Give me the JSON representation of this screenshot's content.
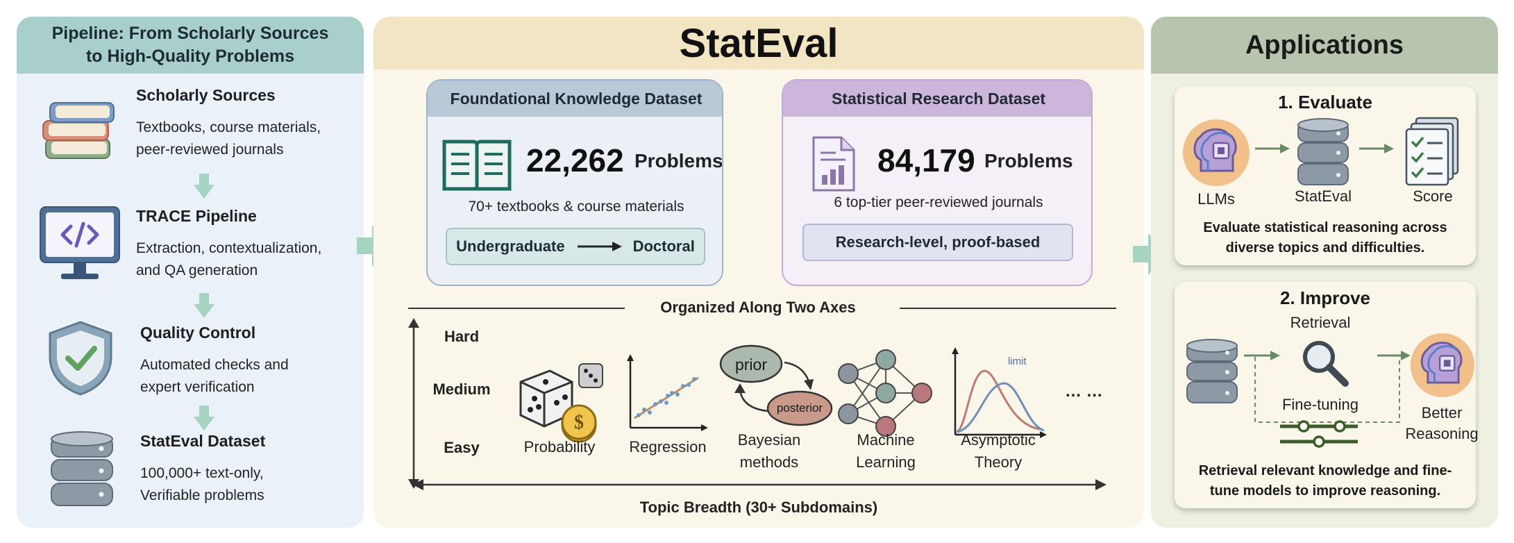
{
  "left": {
    "title_line1": "Pipeline: From Scholarly Sources",
    "title_line2": "to High-Quality Problems",
    "steps": [
      {
        "title": "Scholarly Sources",
        "desc1": "Textbooks, course materials,",
        "desc2": "peer-reviewed journals"
      },
      {
        "title": "TRACE Pipeline",
        "desc1": "Extraction, contextualization,",
        "desc2": "and QA generation"
      },
      {
        "title": "Quality Control",
        "desc1": "Automated checks and",
        "desc2": "expert verification"
      },
      {
        "title": "StatEval Dataset",
        "desc1": "100,000+ text-only,",
        "desc2": "Verifiable problems"
      }
    ]
  },
  "middle": {
    "title": "StatEval",
    "foundational": {
      "title": "Foundational Knowledge Dataset",
      "count": "22,262",
      "unit": "Problems",
      "source": "70+ textbooks & course materials",
      "from": "Undergraduate",
      "to": "Doctoral"
    },
    "research": {
      "title": "Statistical Research Dataset",
      "count": "84,179",
      "unit": "Problems",
      "source": "6 top-tier peer-reviewed journals",
      "level": "Research-level, proof-based"
    },
    "axes_title": "Organized Along Two Axes",
    "difficulty": [
      "Hard",
      "Medium",
      "Easy"
    ],
    "topics": [
      {
        "line1": "Probability",
        "line2": ""
      },
      {
        "line1": "Regression",
        "line2": ""
      },
      {
        "line1": "Bayesian",
        "line2": "methods"
      },
      {
        "line1": "Machine",
        "line2": "Learning"
      },
      {
        "line1": "Asymptotic",
        "line2": "Theory"
      }
    ],
    "ellipsis": "… …",
    "prior_label": "prior",
    "posterior_label": "posterior",
    "limit_label": "limit",
    "breadth_label": "Topic Breadth (30+ Subdomains)"
  },
  "right": {
    "title": "Applications",
    "evaluate": {
      "title": "1. Evaluate",
      "icons": [
        "LLMs",
        "StatEval",
        "Score"
      ],
      "desc1": "Evaluate statistical reasoning across",
      "desc2": "diverse topics and difficulties."
    },
    "improve": {
      "title": "2. Improve",
      "retrieval": "Retrieval",
      "finetuning": "Fine-tuning",
      "better1": "Better",
      "better2": "Reasoning",
      "desc1": "Retrieval relevant knowledge and fine-",
      "desc2": "tune models to improve reasoning."
    }
  },
  "colors": {
    "left_header": "#a8cfc9",
    "left_bg": "#eaf1f8",
    "mid_header": "#f2e5c3",
    "mid_bg": "#fbf6ea",
    "right_header": "#b7c4ae",
    "right_bg": "#eef0e2",
    "foundational_header": "#b9c9d8",
    "research_header": "#ccb6dc",
    "arrow": "#a6d4c0"
  }
}
